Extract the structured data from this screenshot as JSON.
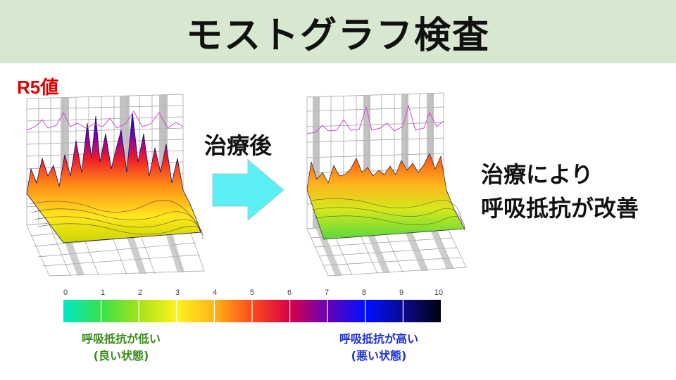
{
  "title": "モストグラフ検査",
  "r5_label": "R5値",
  "after_label": "治療後",
  "result_text": {
    "line1": "治療により",
    "line2": "呼吸抵抗が改善"
  },
  "scale": {
    "ticks": [
      "0",
      "1",
      "2",
      "3",
      "4",
      "5",
      "6",
      "7",
      "8",
      "9",
      "10"
    ],
    "colors": [
      "#00e8c8",
      "#39e04a",
      "#a4e21a",
      "#fff21c",
      "#ffb51c",
      "#ff4a18",
      "#d8004a",
      "#6600b8",
      "#0010ff",
      "#0a0a90",
      "#020210"
    ]
  },
  "legend": {
    "low_line1": "呼吸抵抗が低い",
    "low_line2": "(良い状態)",
    "high_line1": "呼吸抵抗が高い",
    "high_line2": "(悪い状態)"
  },
  "colors": {
    "title_bg": "#d8e8d0",
    "r5_red": "#e00000",
    "low_green": "#3a8a1a",
    "high_blue": "#1d2fd6",
    "arrow": "#5cf0f4"
  }
}
